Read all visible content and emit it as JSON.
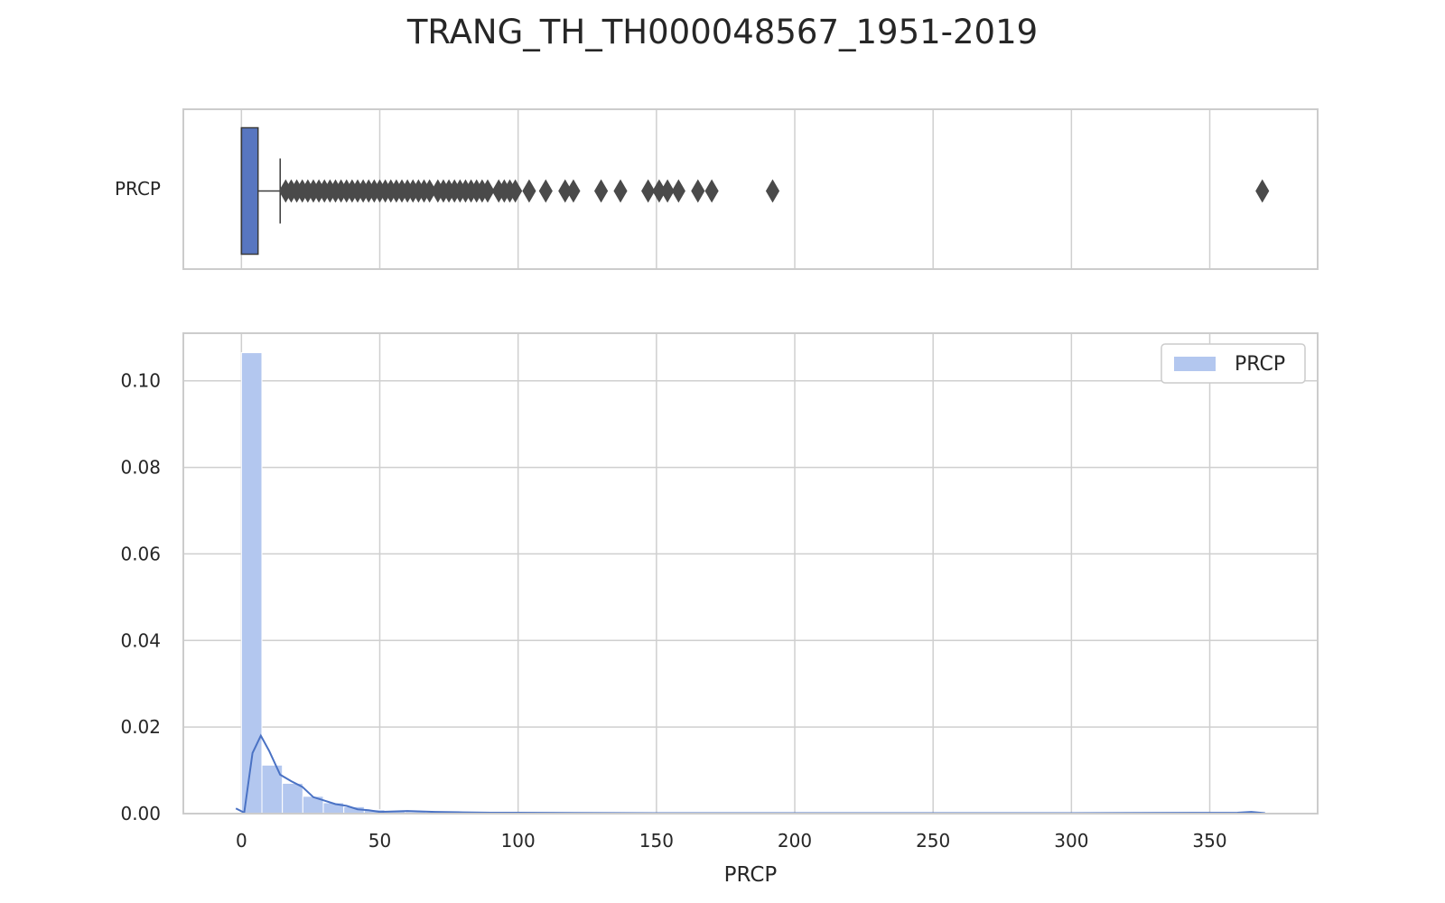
{
  "chart_data": [
    {
      "type": "box",
      "title": "TRANG_TH_TH000048567_1951-2019",
      "ylabel": "PRCP",
      "xlim": [
        -21,
        389
      ],
      "box": {
        "q1": 0,
        "median": 0,
        "q3": 6,
        "whisker_low": 0,
        "whisker_high": 14
      },
      "outliers": [
        16,
        18,
        20,
        22,
        24,
        26,
        28,
        30,
        32,
        34,
        36,
        38,
        40,
        42,
        44,
        46,
        48,
        50,
        52,
        54,
        56,
        58,
        60,
        62,
        64,
        66,
        68,
        71,
        73,
        75,
        77,
        79,
        81,
        83,
        85,
        87,
        89,
        93,
        95,
        97,
        99,
        104,
        110,
        117,
        120,
        130,
        137,
        147,
        151,
        154,
        158,
        165,
        170,
        192,
        369
      ],
      "xticks": [
        0,
        50,
        100,
        150,
        200,
        250,
        300,
        350
      ],
      "grid": true
    },
    {
      "type": "histogram",
      "xlabel": "PRCP",
      "ylabel": "",
      "legend": {
        "labels": [
          "PRCP"
        ],
        "position": "top-right"
      },
      "xlim": [
        -21,
        389
      ],
      "ylim": [
        0,
        0.111
      ],
      "xticks": [
        0,
        50,
        100,
        150,
        200,
        250,
        300,
        350
      ],
      "xtick_labels": [
        "0",
        "50",
        "100",
        "150",
        "200",
        "250",
        "300",
        "350"
      ],
      "yticks": [
        0.0,
        0.02,
        0.04,
        0.06,
        0.08,
        0.1
      ],
      "ytick_labels": [
        "0.00",
        "0.02",
        "0.04",
        "0.06",
        "0.08",
        "0.10"
      ],
      "bin_width": 7.4,
      "bins": {
        "x_start": [
          0,
          7.4,
          14.8,
          22.2,
          29.6,
          37.0,
          44.4,
          51.8,
          59.2,
          66.6,
          74.0,
          81.4,
          88.8
        ],
        "density": [
          0.1065,
          0.0112,
          0.007,
          0.004,
          0.0025,
          0.0016,
          0.0009,
          0.0006,
          0.0004,
          0.0003,
          0.0003,
          0.0002,
          0.0002
        ]
      },
      "kde": {
        "x": [
          -2,
          1,
          4,
          7,
          10,
          14,
          18,
          22,
          26,
          30,
          34,
          38,
          42,
          46,
          50,
          60,
          70,
          80,
          90,
          100,
          150,
          200,
          300,
          360,
          365,
          370
        ],
        "y": [
          0.0012,
          0.0002,
          0.014,
          0.018,
          0.0145,
          0.009,
          0.0075,
          0.0062,
          0.0038,
          0.003,
          0.0022,
          0.0018,
          0.001,
          0.0008,
          0.0004,
          0.0006,
          0.0004,
          0.0003,
          0.0002,
          0.0002,
          0.0001,
          0.0001,
          0.0001,
          0.0002,
          0.0004,
          0.0001
        ]
      },
      "grid": true
    }
  ],
  "colors": {
    "box_fill": "#5876c0",
    "hist_fill": "#b3c7ef",
    "kde_line": "#4a72c4",
    "outlier": "#4a4a4a",
    "grid": "#cfcfcf",
    "spine": "#cccccc"
  }
}
